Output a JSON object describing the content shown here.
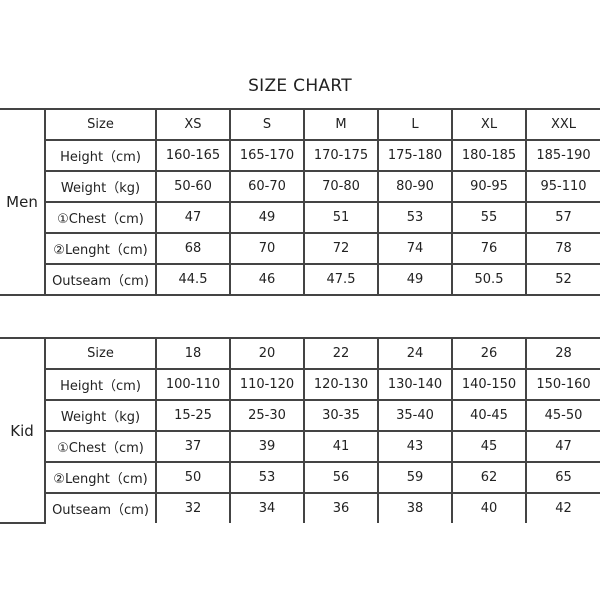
{
  "title": "SIZE CHART",
  "tables": [
    {
      "group": "Men",
      "header": [
        "Size",
        "XS",
        "S",
        "M",
        "L",
        "XL",
        "XXL"
      ],
      "rows": [
        [
          "Height（cm)",
          "160-165",
          "165-170",
          "170-175",
          "175-180",
          "180-185",
          "185-190"
        ],
        [
          "Weight（kg)",
          "50-60",
          "60-70",
          "70-80",
          "80-90",
          "90-95",
          "95-110"
        ],
        [
          "①Chest（cm)",
          "47",
          "49",
          "51",
          "53",
          "55",
          "57"
        ],
        [
          "②Lenght（cm)",
          "68",
          "70",
          "72",
          "74",
          "76",
          "78"
        ],
        [
          "Outseam（cm)",
          "44.5",
          "46",
          "47.5",
          "49",
          "50.5",
          "52"
        ]
      ]
    },
    {
      "group": "Kid",
      "header": [
        "Size",
        "18",
        "20",
        "22",
        "24",
        "26",
        "28"
      ],
      "rows": [
        [
          "Height（cm)",
          "100-110",
          "110-120",
          "120-130",
          "130-140",
          "140-150",
          "150-160"
        ],
        [
          "Weight（kg)",
          "15-25",
          "25-30",
          "30-35",
          "35-40",
          "40-45",
          "45-50"
        ],
        [
          "①Chest（cm)",
          "37",
          "39",
          "41",
          "43",
          "45",
          "47"
        ],
        [
          "②Lenght（cm)",
          "50",
          "53",
          "56",
          "59",
          "62",
          "65"
        ],
        [
          "Outseam（cm)",
          "32",
          "34",
          "36",
          "38",
          "40",
          "42"
        ]
      ]
    }
  ]
}
